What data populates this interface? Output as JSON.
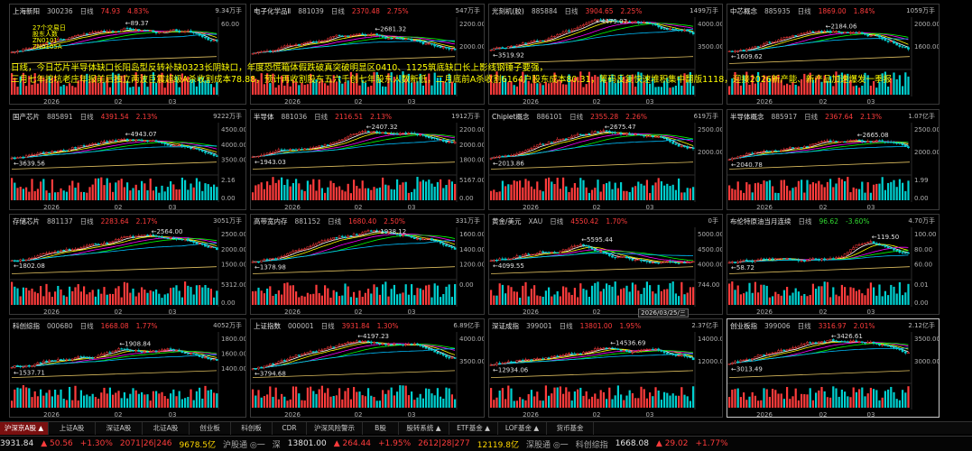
{
  "panels": [
    {
      "name": "上海新阳",
      "code": "300236",
      "period": "日线",
      "price": "74.93",
      "chg": "4.83%",
      "dir": "up",
      "vol": "9.34万手",
      "ylabels": [
        "60.00"
      ],
      "hi": "89.37",
      "lo": "",
      "mid": "",
      "xlabels": [
        "2026",
        "02",
        "03"
      ],
      "vlabels": [],
      "volmax": "",
      "volmin": ""
    },
    {
      "name": "电子化学品Ⅱ",
      "code": "881039",
      "period": "日线",
      "price": "2370.48",
      "chg": "2.75%",
      "dir": "up",
      "vol": "547万手",
      "ylabels": [
        "2200.00",
        "2000.00"
      ],
      "hi": "2681.32",
      "lo": "",
      "mid": "",
      "xlabels": [
        "2026",
        "02",
        "03"
      ],
      "volmax": "",
      "volmin": ""
    },
    {
      "name": "光刻机(胶)",
      "code": "885884",
      "period": "日线",
      "price": "3904.65",
      "chg": "2.25%",
      "dir": "up",
      "vol": "1499万手",
      "ylabels": [
        "4000.00",
        "3500.00"
      ],
      "hi": "4479.07",
      "lo": "3519.92",
      "mid": "",
      "xlabels": [
        "2026",
        "02",
        "03"
      ],
      "volmax": "",
      "volmin": ""
    },
    {
      "name": "中芯概念",
      "code": "885935",
      "period": "日线",
      "price": "1869.00",
      "chg": "1.84%",
      "dir": "up",
      "vol": "1059万手",
      "ylabels": [
        "2000.00",
        "1600.00"
      ],
      "hi": "2184.06",
      "lo": "1609.62",
      "mid": "",
      "xlabels": [
        "2026",
        "02",
        "03"
      ],
      "volmax": "",
      "volmin": ""
    },
    {
      "name": "国产芯片",
      "code": "885891",
      "period": "日线",
      "price": "4391.54",
      "chg": "2.13%",
      "dir": "up",
      "vol": "9222万手",
      "ylabels": [
        "4500.00",
        "4000.00",
        "3500.00"
      ],
      "hi": "4943.07",
      "lo": "3639.56",
      "mid": "",
      "xlabels": [
        "2026",
        "02",
        "03"
      ],
      "volmax": "2.16",
      "volmin": "0.00"
    },
    {
      "name": "半导体",
      "code": "881036",
      "period": "日线",
      "price": "2116.51",
      "chg": "2.13%",
      "dir": "up",
      "vol": "1912万手",
      "ylabels": [
        "2200.00",
        "2000.00",
        "1800.00"
      ],
      "hi": "2407.32",
      "lo": "1943.03",
      "mid": "",
      "xlabels": [
        "2026",
        "02",
        "03"
      ],
      "volmax": "5167.00",
      "volmin": "0.00"
    },
    {
      "name": "Chiplet概念",
      "code": "886101",
      "period": "日线",
      "price": "2355.28",
      "chg": "2.26%",
      "dir": "up",
      "vol": "619万手",
      "ylabels": [
        "2500.00",
        "2000.00"
      ],
      "hi": "2675.47",
      "lo": "2013.86",
      "mid": "",
      "xlabels": [
        "2026",
        "02",
        "03"
      ],
      "volmax": "",
      "volmin": ""
    },
    {
      "name": "半导体概念",
      "code": "885917",
      "period": "日线",
      "price": "2367.64",
      "chg": "2.13%",
      "dir": "up",
      "vol": "1.07亿手",
      "ylabels": [
        "2500.00",
        "2000.00"
      ],
      "hi": "2665.08",
      "lo": "2040.78",
      "mid": "",
      "xlabels": [
        "2026",
        "02",
        "03"
      ],
      "volmax": "1.99",
      "volmin": "0.00"
    },
    {
      "name": "存储芯片",
      "code": "881137",
      "period": "日线",
      "price": "2283.64",
      "chg": "2.17%",
      "dir": "up",
      "vol": "3051万手",
      "ylabels": [
        "2500.00",
        "2000.00",
        "1500.00"
      ],
      "hi": "2564.00",
      "lo": "1802.08",
      "mid": "",
      "xlabels": [
        "2026",
        "02",
        "03"
      ],
      "volmax": "5312.00",
      "volmin": "0.00"
    },
    {
      "name": "高带宽内存",
      "code": "881152",
      "period": "日线",
      "price": "1680.40",
      "chg": "2.50%",
      "dir": "up",
      "vol": "331万手",
      "ylabels": [
        "1600.00",
        "1400.00",
        "1200.00"
      ],
      "hi": "1938.12",
      "lo": "1378.98",
      "mid": "",
      "xlabels": [
        "2026",
        "02",
        "03"
      ],
      "volmax": "0.00",
      "volmin": ""
    },
    {
      "name": "黄金/美元",
      "code": "XAU",
      "period": "日线",
      "price": "4550.42",
      "chg": "1.70%",
      "dir": "up",
      "vol": "0手",
      "ylabels": [
        "5000.00",
        "4500.00",
        "4000.00"
      ],
      "hi": "5595.44",
      "lo": "4099.55",
      "mid": "",
      "xlabels": [
        "2026",
        "02",
        "03"
      ],
      "volmax": "744.00",
      "volmin": ""
    },
    {
      "name": "布伦特原油当月连续",
      "code": "",
      "period": "日线",
      "price": "96.62",
      "chg": "-3.60%",
      "dir": "down",
      "vol": "4.70万手",
      "ylabels": [
        "100.00",
        "80.00",
        "60.00"
      ],
      "hi": "119.50",
      "lo": "58.72",
      "mid": "",
      "xlabels": [
        "2026",
        "02",
        "03"
      ],
      "volmax": "0.01",
      "volmin": "0.00"
    },
    {
      "name": "科创综指",
      "code": "000680",
      "period": "日线",
      "price": "1668.08",
      "chg": "1.77%",
      "dir": "up",
      "vol": "4052万手",
      "ylabels": [
        "1800.00",
        "1600.00",
        "1400.00"
      ],
      "hi": "1908.84",
      "lo": "1537.71",
      "mid": "",
      "xlabels": [
        "2026",
        "02",
        "03"
      ],
      "volmax": "",
      "volmin": ""
    },
    {
      "name": "上证指数",
      "code": "000001",
      "period": "日线",
      "price": "3931.84",
      "chg": "1.30%",
      "dir": "up",
      "vol": "6.89亿手",
      "ylabels": [
        "4000.00",
        "3500.00"
      ],
      "hi": "4197.23",
      "lo": "3794.68",
      "mid": "",
      "xlabels": [
        "2026",
        "02",
        "03"
      ],
      "volmax": "",
      "volmin": ""
    },
    {
      "name": "深证成指",
      "code": "399001",
      "period": "日线",
      "price": "13801.00",
      "chg": "1.95%",
      "dir": "up",
      "vol": "2.37亿手",
      "ylabels": [
        "14000.00",
        "12000.00"
      ],
      "hi": "14536.69",
      "lo": "12934.06",
      "mid": "",
      "xlabels": [
        "2026",
        "02",
        "03"
      ],
      "volmax": "",
      "volmin": ""
    },
    {
      "name": "创业板指",
      "code": "399006",
      "period": "日线",
      "price": "3316.97",
      "chg": "2.01%",
      "dir": "up",
      "vol": "2.12亿手",
      "ylabels": [
        "3500.00",
        "3000.00"
      ],
      "hi": "3426.61",
      "lo": "3013.49",
      "mid": "",
      "xlabels": [
        "2026",
        "02",
        "03"
      ],
      "volmax": "",
      "volmin": ""
    }
  ],
  "notes": [
    "日线，今日芯片半导体缺口长阳岛型反转补缺0323长阴缺口，年度恐慌箱体假跌破真突破明显区0410、1125筑底缺口长上影线钢锤子要强，",
    "三月七年挖坑老庄年报前后独立两波巨震超级A杀收割成本78.88，预计再收割股东五六千创七年股东人数新低，二月底前A杀收割6164户股东成本80.31，筹码反复快速堆积集中翻版1118，迎接2026新产能、新产品加速爆发一季报"
  ],
  "overlay_labels": [
    "27个交易日",
    "股东人数",
    "ZN0101",
    "ZN0105A",
    "..."
  ],
  "datebox": "2026/03/25/三",
  "tabs": [
    "沪深京A股 ▲",
    "上证A股",
    "深证A股",
    "北证A股",
    "创业板",
    "科创板",
    "CDR",
    "沪深风险警示",
    "B股",
    "股转系统 ▲",
    "ETF基金 ▲",
    "LOF基金 ▲",
    "货币基金"
  ],
  "status": [
    {
      "t": "3931.84",
      "c": "wh"
    },
    {
      "t": "▲ 50.56",
      "c": "up"
    },
    {
      "t": "+1.30%",
      "c": "up"
    },
    {
      "t": "2071|26|246",
      "c": "up"
    },
    {
      "t": "9678.5亿",
      "c": "yel"
    },
    {
      "t": "沪股通 ◎一",
      "c": "gray"
    },
    {
      "t": "深",
      "c": "gray"
    },
    {
      "t": "13801.00",
      "c": "wh"
    },
    {
      "t": "▲ 264.44",
      "c": "up"
    },
    {
      "t": "+1.95%",
      "c": "up"
    },
    {
      "t": "2612|28|277",
      "c": "up"
    },
    {
      "t": "12119.8亿",
      "c": "yel"
    },
    {
      "t": "深股通 ◎一",
      "c": "gray"
    },
    {
      "t": "科创综指",
      "c": "gray"
    },
    {
      "t": "1668.08",
      "c": "wh"
    },
    {
      "t": "▲ 29.02",
      "c": "up"
    },
    {
      "t": "+1.77%",
      "c": "up"
    }
  ],
  "colors": {
    "up": "#ff3c3c",
    "down": "#31d931",
    "ma5": "#ffffff",
    "ma10": "#ffff00",
    "ma20": "#ff00ff",
    "ma30": "#00ff00",
    "ma60": "#00bfff",
    "ma250": "#e0c060",
    "volup": "#ff3c3c",
    "voldown": "#00d0d0"
  }
}
